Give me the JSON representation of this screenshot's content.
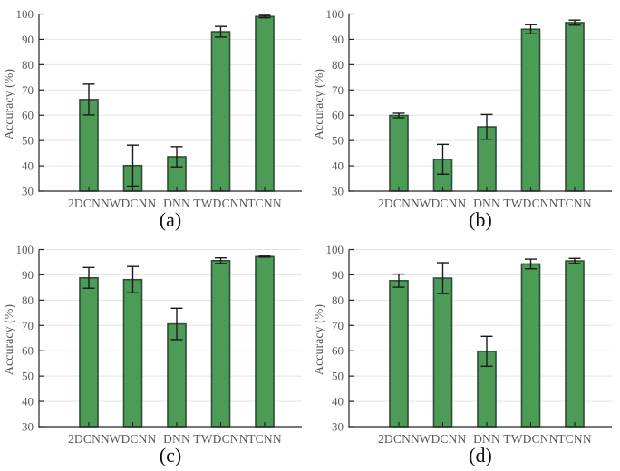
{
  "colors": {
    "background": "#ffffff",
    "bar_fill": "#4c9c57",
    "bar_edge": "#2e4d36",
    "grid": "#e3e3e3",
    "axis": "#262626",
    "error": "#1a1a1a",
    "tick_text": "#595959",
    "caption_text": "#111111"
  },
  "chart_data": [
    {
      "type": "bar",
      "caption": "(a)",
      "ylabel": "Accuracy (%)",
      "ylim": [
        30,
        100
      ],
      "yticks": [
        30,
        40,
        50,
        60,
        70,
        80,
        90,
        100
      ],
      "grid": true,
      "categories": [
        "2DCNN",
        "WDCNN",
        "DNN",
        "TWDCNN",
        "TCNN"
      ],
      "values": [
        66.2,
        40.1,
        43.6,
        93.0,
        99.0
      ],
      "errors": [
        6.1,
        8.1,
        4.0,
        2.1,
        0.5
      ]
    },
    {
      "type": "bar",
      "caption": "(b)",
      "ylabel": "Accuracy (%)",
      "ylim": [
        30,
        100
      ],
      "yticks": [
        30,
        40,
        50,
        60,
        70,
        80,
        90,
        100
      ],
      "grid": true,
      "categories": [
        "2DCNN",
        "WDCNN",
        "DNN",
        "TWDCNN",
        "TCNN"
      ],
      "values": [
        59.9,
        42.6,
        55.4,
        94.0,
        96.6
      ],
      "errors": [
        0.9,
        5.9,
        4.9,
        1.8,
        1.0
      ]
    },
    {
      "type": "bar",
      "caption": "(c)",
      "ylabel": "Accuracy (%)",
      "ylim": [
        30,
        100
      ],
      "yticks": [
        30,
        40,
        50,
        60,
        70,
        80,
        90,
        100
      ],
      "grid": true,
      "categories": [
        "2DCNN",
        "WDCNN",
        "DNN",
        "TWDCNN",
        "TCNN"
      ],
      "values": [
        88.8,
        88.1,
        70.6,
        95.6,
        97.2
      ],
      "errors": [
        4.1,
        5.2,
        6.2,
        1.1,
        0.2
      ]
    },
    {
      "type": "bar",
      "caption": "(d)",
      "ylabel": "Accuracy (%)",
      "ylim": [
        30,
        100
      ],
      "yticks": [
        30,
        40,
        50,
        60,
        70,
        80,
        90,
        100
      ],
      "grid": true,
      "categories": [
        "2DCNN",
        "WDCNN",
        "DNN",
        "TWDCNN",
        "TCNN"
      ],
      "values": [
        87.7,
        88.7,
        59.8,
        94.3,
        95.5
      ],
      "errors": [
        2.6,
        6.1,
        5.9,
        1.9,
        1.0
      ]
    }
  ]
}
